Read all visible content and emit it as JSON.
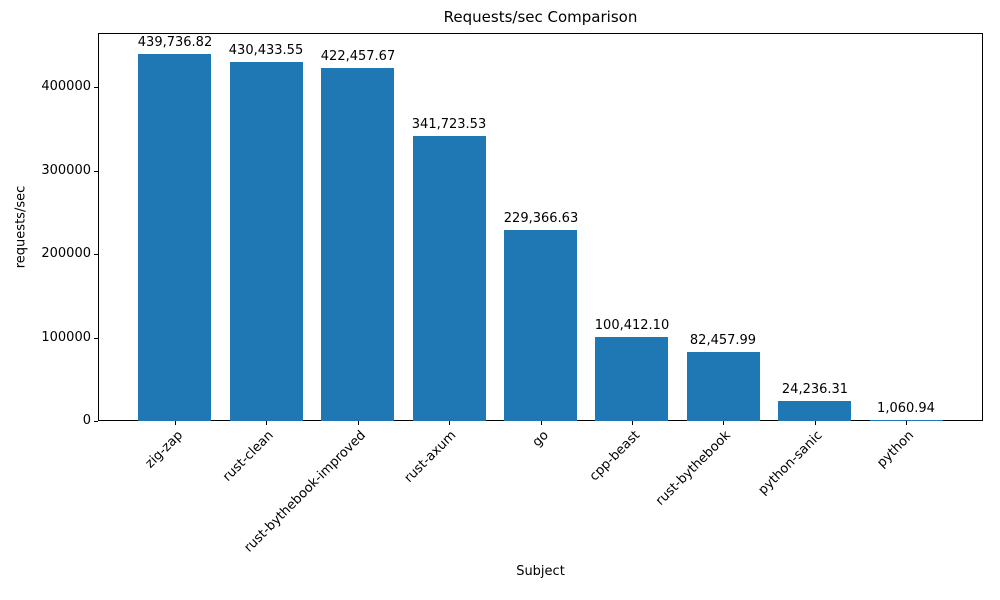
{
  "chart_data": {
    "type": "bar",
    "title": "Requests/sec Comparison",
    "xlabel": "Subject",
    "ylabel": "requests/sec",
    "categories": [
      "zig-zap",
      "rust-clean",
      "rust-bythebook-improved",
      "rust-axum",
      "go",
      "cpp-beast",
      "rust-bythebook",
      "python-sanic",
      "python"
    ],
    "values": [
      439736.82,
      430433.55,
      422457.67,
      341723.53,
      229366.63,
      100412.1,
      82457.99,
      24236.31,
      1060.94
    ],
    "value_labels": [
      "439,736.82",
      "430,433.55",
      "422,457.67",
      "341,723.53",
      "229,366.63",
      "100,412.10",
      "82,457.99",
      "24,236.31",
      "1,060.94"
    ],
    "yticks": [
      0,
      100000,
      200000,
      300000,
      400000
    ],
    "ytick_labels": [
      "0",
      "100000",
      "200000",
      "300000",
      "400000"
    ],
    "ylim": [
      0,
      465000
    ],
    "bar_color": "#1f77b4",
    "axis_color": "#000000",
    "grid": false,
    "legend_position": "none",
    "x_tick_rotation_deg": 45
  }
}
